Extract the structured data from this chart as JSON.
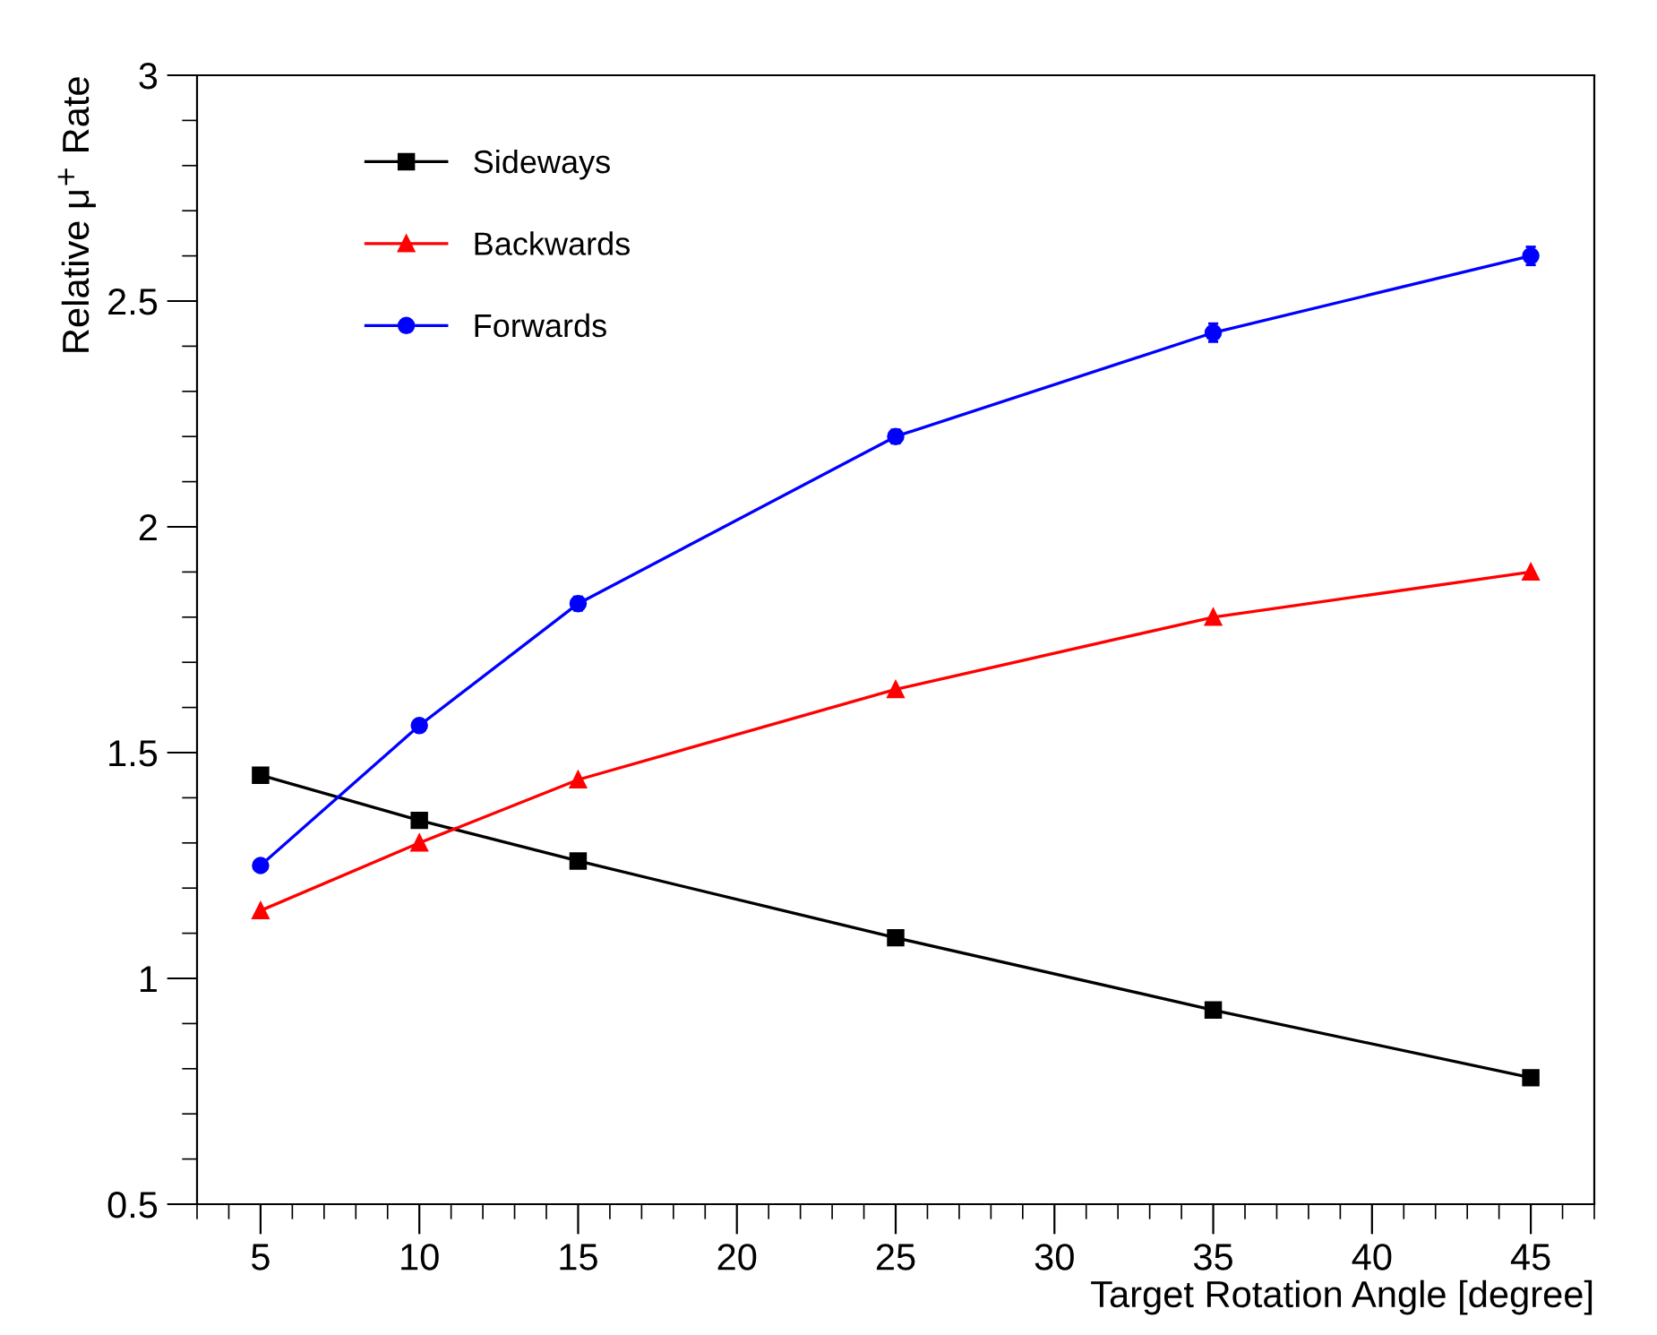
{
  "chart_data": {
    "type": "line",
    "xlabel": "Target Rotation Angle [degree]",
    "ylabel": "Relative μ$^{+}$ Rate",
    "x": [
      5,
      10,
      15,
      25,
      35,
      45
    ],
    "series": [
      {
        "name": "Sideways",
        "color": "#000000",
        "marker": "square",
        "values": [
          1.45,
          1.35,
          1.26,
          1.09,
          0.93,
          0.78
        ]
      },
      {
        "name": "Backwards",
        "color": "#ff0000",
        "marker": "triangle",
        "values": [
          1.15,
          1.3,
          1.44,
          1.64,
          1.8,
          1.9
        ]
      },
      {
        "name": "Forwards",
        "color": "#0000ff",
        "marker": "circle",
        "values": [
          1.25,
          1.56,
          1.83,
          2.2,
          2.43,
          2.6
        ],
        "errors": [
          0.01,
          0.01,
          0.015,
          0.015,
          0.02,
          0.02
        ]
      }
    ],
    "xlim": [
      3,
      47
    ],
    "xticks": [
      5,
      10,
      15,
      20,
      25,
      30,
      35,
      40,
      45
    ],
    "ylim": [
      0.5,
      3
    ],
    "yticks": [
      0.5,
      1,
      1.5,
      2,
      2.5,
      3
    ],
    "grid": false,
    "legend": "top left"
  }
}
